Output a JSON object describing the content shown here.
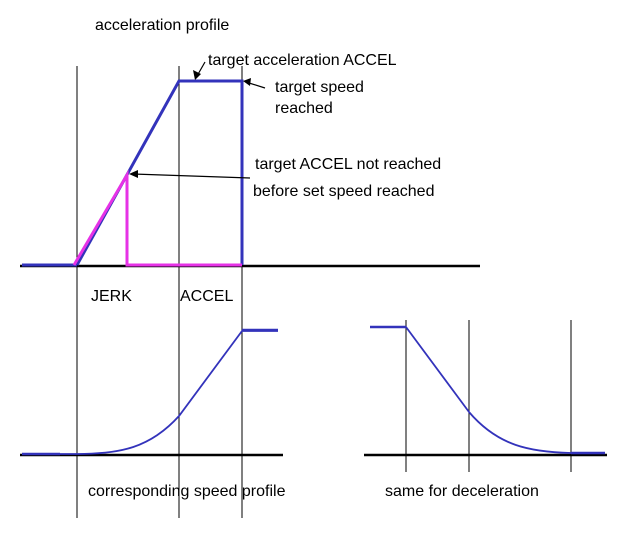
{
  "labels": {
    "acceleration_profile": "acceleration profile",
    "target_acceleration": "target acceleration ACCEL",
    "target_speed_line1": "target speed",
    "target_speed_line2": "reached",
    "not_reached_line1": "target ACCEL not reached",
    "not_reached_line2": "before set speed reached",
    "jerk": "JERK",
    "accel": "ACCEL",
    "speed_profile": "corresponding speed profile",
    "deceleration": "same for deceleration"
  },
  "colors": {
    "blue": "#3333bb",
    "magenta": "#e632e6",
    "black": "#000000"
  }
}
